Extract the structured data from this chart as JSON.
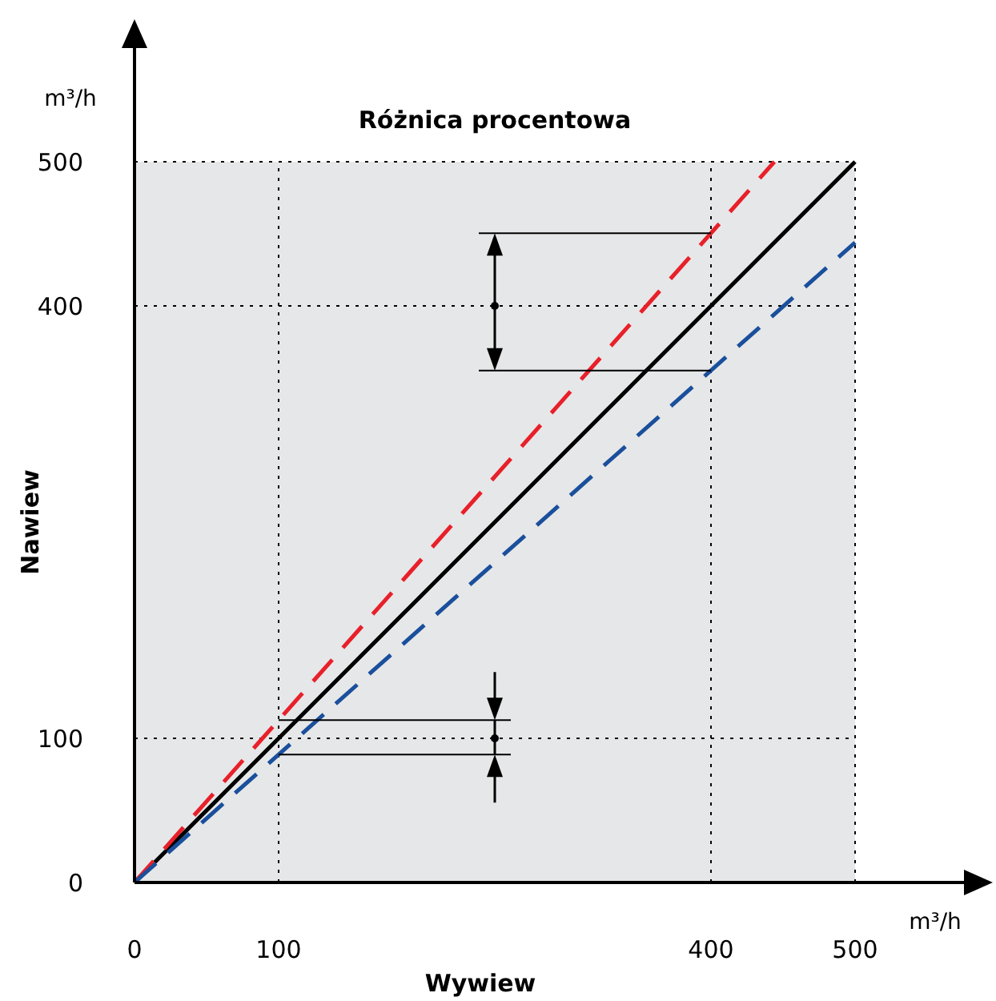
{
  "chart_data": {
    "type": "line",
    "title": "Różnica procentowa",
    "xlabel": "Wywiew",
    "ylabel": "Nawiew",
    "annotations": [
      "m³/h",
      "m³/h"
    ],
    "xlim": [
      0,
      500
    ],
    "ylim": [
      0,
      500
    ],
    "xticks": [
      0,
      100,
      400,
      500
    ],
    "yticks": [
      0,
      100,
      400,
      500
    ],
    "grid": true,
    "marker": "none",
    "series": [
      {
        "color": "#000000",
        "x": [
          0,
          500
        ],
        "values": [
          0,
          500
        ],
        "line_style": "solid"
      },
      {
        "color": "#e8202a",
        "x": [
          0,
          444
        ],
        "values": [
          0,
          500
        ],
        "line_style": "dashed"
      },
      {
        "color": "#1a4f9c",
        "x": [
          0,
          500
        ],
        "values": [
          0,
          444
        ],
        "line_style": "dashed"
      }
    ]
  }
}
